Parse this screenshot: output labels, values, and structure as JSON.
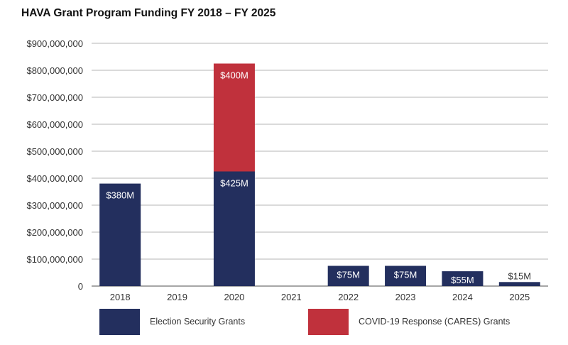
{
  "title": "HAVA Grant Program Funding FY 2018 – FY 2025",
  "chart_data": {
    "type": "bar",
    "stacked": true,
    "title": "HAVA Grant Program Funding FY 2018 – FY 2025",
    "categories": [
      "2018",
      "2019",
      "2020",
      "2021",
      "2022",
      "2023",
      "2024",
      "2025"
    ],
    "series": [
      {
        "name": "Election Security Grants",
        "color": "#232f5e",
        "values": [
          380000000,
          0,
          425000000,
          0,
          75000000,
          75000000,
          55000000,
          15000000
        ],
        "labels": [
          "$380M",
          "",
          "$425M",
          "",
          "$75M",
          "$75M",
          "$55M",
          "$15M"
        ]
      },
      {
        "name": "COVID-19 Response (CARES) Grants",
        "color": "#c0313c",
        "values": [
          0,
          0,
          400000000,
          0,
          0,
          0,
          0,
          0
        ],
        "labels": [
          "",
          "",
          "$400M",
          "",
          "",
          "",
          "",
          ""
        ]
      }
    ],
    "yticks": [
      0,
      100000000,
      200000000,
      300000000,
      400000000,
      500000000,
      600000000,
      700000000,
      800000000,
      900000000
    ],
    "ytick_labels": [
      "0",
      "$100,000,000",
      "$200,000,000",
      "$300,000,000",
      "$400,000,000",
      "$500,000,000",
      "$600,000,000",
      "$700,000,000",
      "$800,000,000",
      "$900,000,000"
    ],
    "ylim": [
      0,
      900000000
    ],
    "grid": true,
    "legend_position": "bottom",
    "xlabel": "",
    "ylabel": ""
  }
}
